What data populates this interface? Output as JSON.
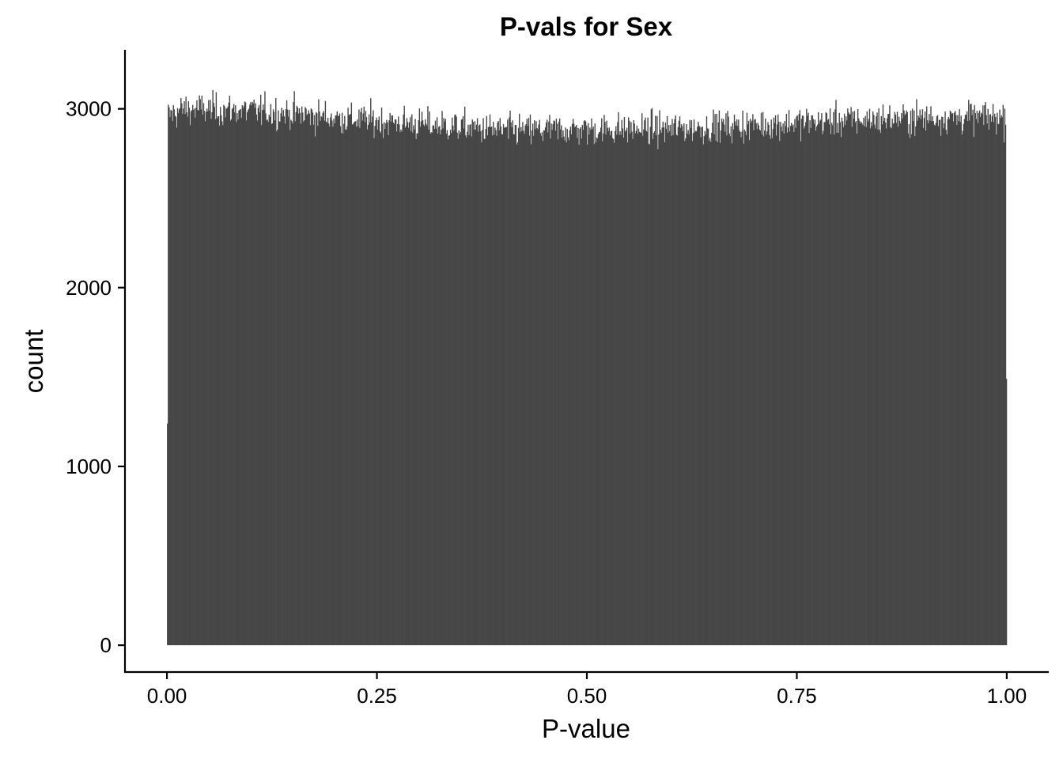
{
  "chart_data": {
    "type": "bar",
    "subtype": "histogram",
    "title": "P-vals for Sex",
    "xlabel": "P-value",
    "ylabel": "count",
    "xlim": [
      -0.05,
      1.05
    ],
    "ylim": [
      -150,
      3330
    ],
    "x_ticks": [
      {
        "value": 0.0,
        "label": "0.00"
      },
      {
        "value": 0.25,
        "label": "0.25"
      },
      {
        "value": 0.5,
        "label": "0.50"
      },
      {
        "value": 0.75,
        "label": "0.75"
      },
      {
        "value": 1.0,
        "label": "1.00"
      }
    ],
    "y_ticks": [
      {
        "value": 0,
        "label": "0"
      },
      {
        "value": 1000,
        "label": "1000"
      },
      {
        "value": 2000,
        "label": "2000"
      },
      {
        "value": 3000,
        "label": "3000"
      }
    ],
    "bin_range": [
      0.0,
      1.0
    ],
    "bins": 1000,
    "first_bin_count": 1240,
    "last_bin_count": 1490,
    "trend_knots": {
      "x": [
        0.0,
        0.02,
        0.1,
        0.15,
        0.2,
        0.3,
        0.4,
        0.5,
        0.6,
        0.7,
        0.8,
        0.9,
        1.0
      ],
      "y": [
        2960,
        3000,
        2990,
        2975,
        2950,
        2915,
        2880,
        2885,
        2890,
        2910,
        2935,
        2950,
        2955
      ]
    },
    "noise_sd": 45,
    "bar_color": "#474747",
    "grid": false,
    "legend": "none"
  }
}
